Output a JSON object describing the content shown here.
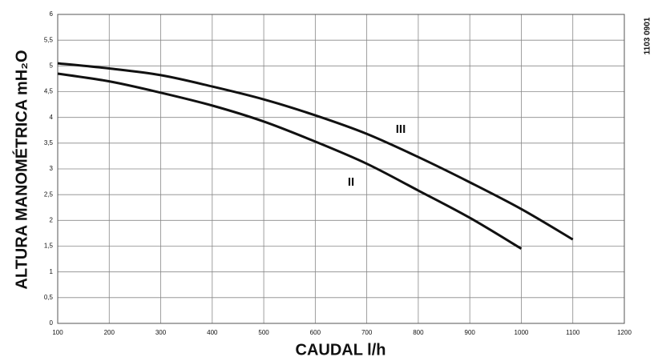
{
  "chart_data": {
    "type": "line",
    "xlabel": "CAUDAL  l/h",
    "ylabel": "ALTURA MANOMÉTRICA  mH₂O",
    "code": "1103 0901",
    "x": [
      100,
      200,
      300,
      400,
      500,
      600,
      700,
      800,
      900,
      1000,
      1100
    ],
    "series": [
      {
        "name": "II",
        "color": "#111111",
        "values": [
          4.85,
          4.7,
          4.48,
          4.23,
          3.92,
          3.53,
          3.1,
          2.58,
          2.05,
          1.45,
          null
        ]
      },
      {
        "name": "III",
        "color": "#111111",
        "values": [
          5.05,
          4.95,
          4.82,
          4.6,
          4.35,
          4.04,
          3.68,
          3.23,
          2.74,
          2.22,
          1.63
        ]
      }
    ],
    "xlim": [
      100,
      1200
    ],
    "xticks": [
      100,
      200,
      300,
      400,
      500,
      600,
      700,
      800,
      900,
      1000,
      1100,
      1200
    ],
    "ylim": [
      0,
      6
    ],
    "yticks": [
      0,
      {
        "value": 0.5,
        "label": "0,5"
      },
      1,
      {
        "value": 1.5,
        "label": "1,5"
      },
      2,
      {
        "value": 2.5,
        "label": "2,5"
      },
      3,
      {
        "value": 3.5,
        "label": "3,5"
      },
      4,
      {
        "value": 4.5,
        "label": "4,5"
      },
      5,
      {
        "value": 5.5,
        "label": "5,5"
      },
      6
    ],
    "grid": true
  }
}
